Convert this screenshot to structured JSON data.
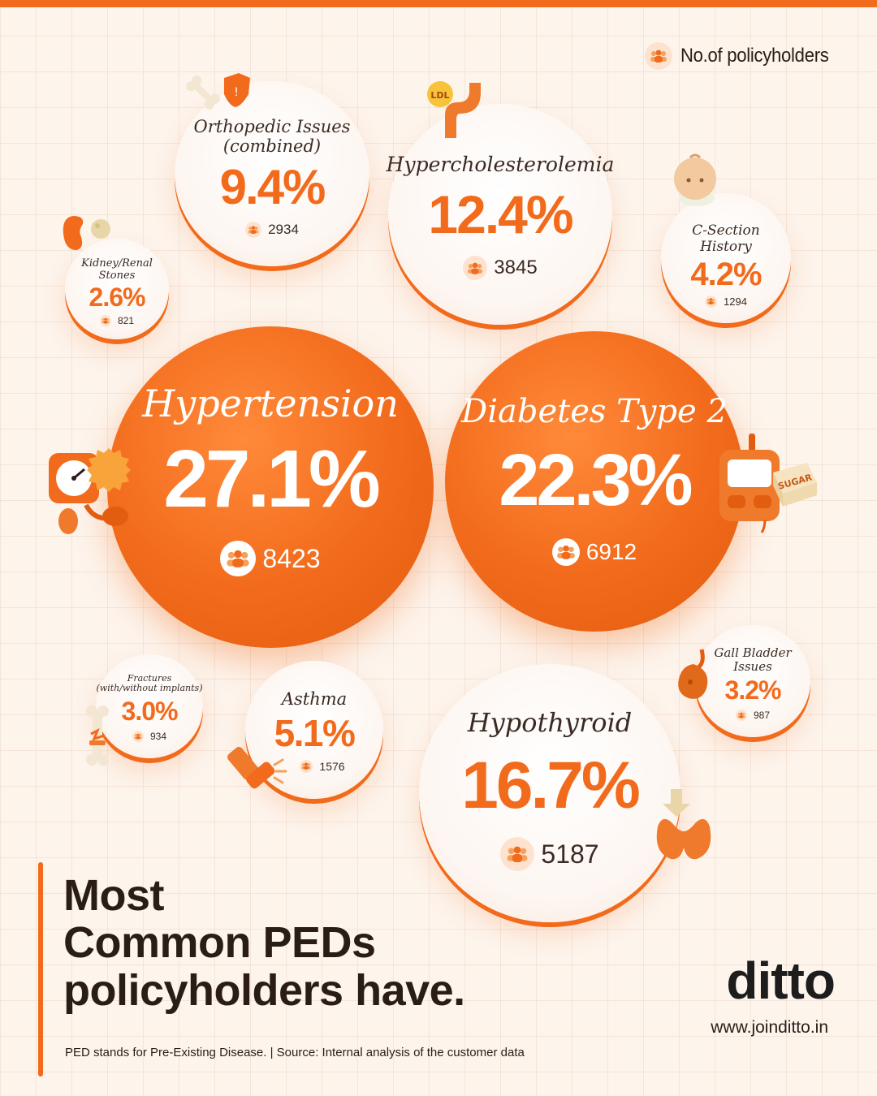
{
  "legend": {
    "label": "No.of policyholders",
    "icon": "people-icon"
  },
  "chart_data": {
    "type": "bubble",
    "title": "Most Common PEDs policyholders have.",
    "value_unit": "%",
    "series": [
      {
        "label": "Hypertension",
        "value": 27.1,
        "value_text": "27.1%",
        "count": 8423,
        "count_text": "8423"
      },
      {
        "label": "Diabetes Type 2",
        "value": 22.3,
        "value_text": "22.3%",
        "count": 6912,
        "count_text": "6912"
      },
      {
        "label": "Hypothyroid",
        "value": 16.7,
        "value_text": "16.7%",
        "count": 5187,
        "count_text": "5187"
      },
      {
        "label": "Hypercholesterolemia",
        "value": 12.4,
        "value_text": "12.4%",
        "count": 3845,
        "count_text": "3845"
      },
      {
        "label": "Orthopedic Issues (combined)",
        "value": 9.4,
        "value_text": "9.4%",
        "count": 2934,
        "count_text": "2934"
      },
      {
        "label": "Asthma",
        "value": 5.1,
        "value_text": "5.1%",
        "count": 1576,
        "count_text": "1576"
      },
      {
        "label": "C-Section History",
        "value": 4.2,
        "value_text": "4.2%",
        "count": 1294,
        "count_text": "1294"
      },
      {
        "label": "Gall Bladder Issues",
        "value": 3.2,
        "value_text": "3.2%",
        "count": 987,
        "count_text": "987"
      },
      {
        "label": "Fractures (with/without implants)",
        "value": 3.0,
        "value_text": "3.0%",
        "count": 934,
        "count_text": "934"
      },
      {
        "label": "Kidney/Renal Stones",
        "value": 2.6,
        "value_text": "2.6%",
        "count": 821,
        "count_text": "821"
      }
    ]
  },
  "bubbles": {
    "hypertension": {
      "label": "Hypertension",
      "value": "27.1%",
      "count": "8423"
    },
    "diabetes": {
      "label": "Diabetes Type 2",
      "value": "22.3%",
      "count": "6912"
    },
    "hypothyroid": {
      "label": "Hypothyroid",
      "value": "16.7%",
      "count": "5187"
    },
    "hypercholesterolemia": {
      "label": "Hypercholesterolemia",
      "value": "12.4%",
      "count": "3845"
    },
    "orthopedic": {
      "label_line1": "Orthopedic Issues",
      "label_line2": "(combined)",
      "value": "9.4%",
      "count": "2934"
    },
    "asthma": {
      "label": "Asthma",
      "value": "5.1%",
      "count": "1576"
    },
    "csection": {
      "label_line1": "C-Section",
      "label_line2": "History",
      "value": "4.2%",
      "count": "1294"
    },
    "gallbladder": {
      "label_line1": "Gall Bladder",
      "label_line2": "Issues",
      "value": "3.2%",
      "count": "987"
    },
    "fractures": {
      "label_line1": "Fractures",
      "label_line2": "(with/without implants)",
      "value": "3.0%",
      "count": "934"
    },
    "kidney": {
      "label_line1": "Kidney/Renal",
      "label_line2": "Stones",
      "value": "2.6%",
      "count": "821"
    }
  },
  "decorations": {
    "ldl_badge": "LDL",
    "sugar_cube": "SUGAR"
  },
  "heading": {
    "line1": "Most",
    "line2": "Common PEDs",
    "line3": "policyholders have."
  },
  "footnote": "PED stands for Pre-Existing Disease.  | Source: Internal analysis of the customer data",
  "brand": {
    "name": "ditto",
    "website": "www.joinditto.in"
  },
  "colors": {
    "accent": "#f26a1b",
    "background": "#fdf4ec",
    "text": "#2a1d18"
  }
}
